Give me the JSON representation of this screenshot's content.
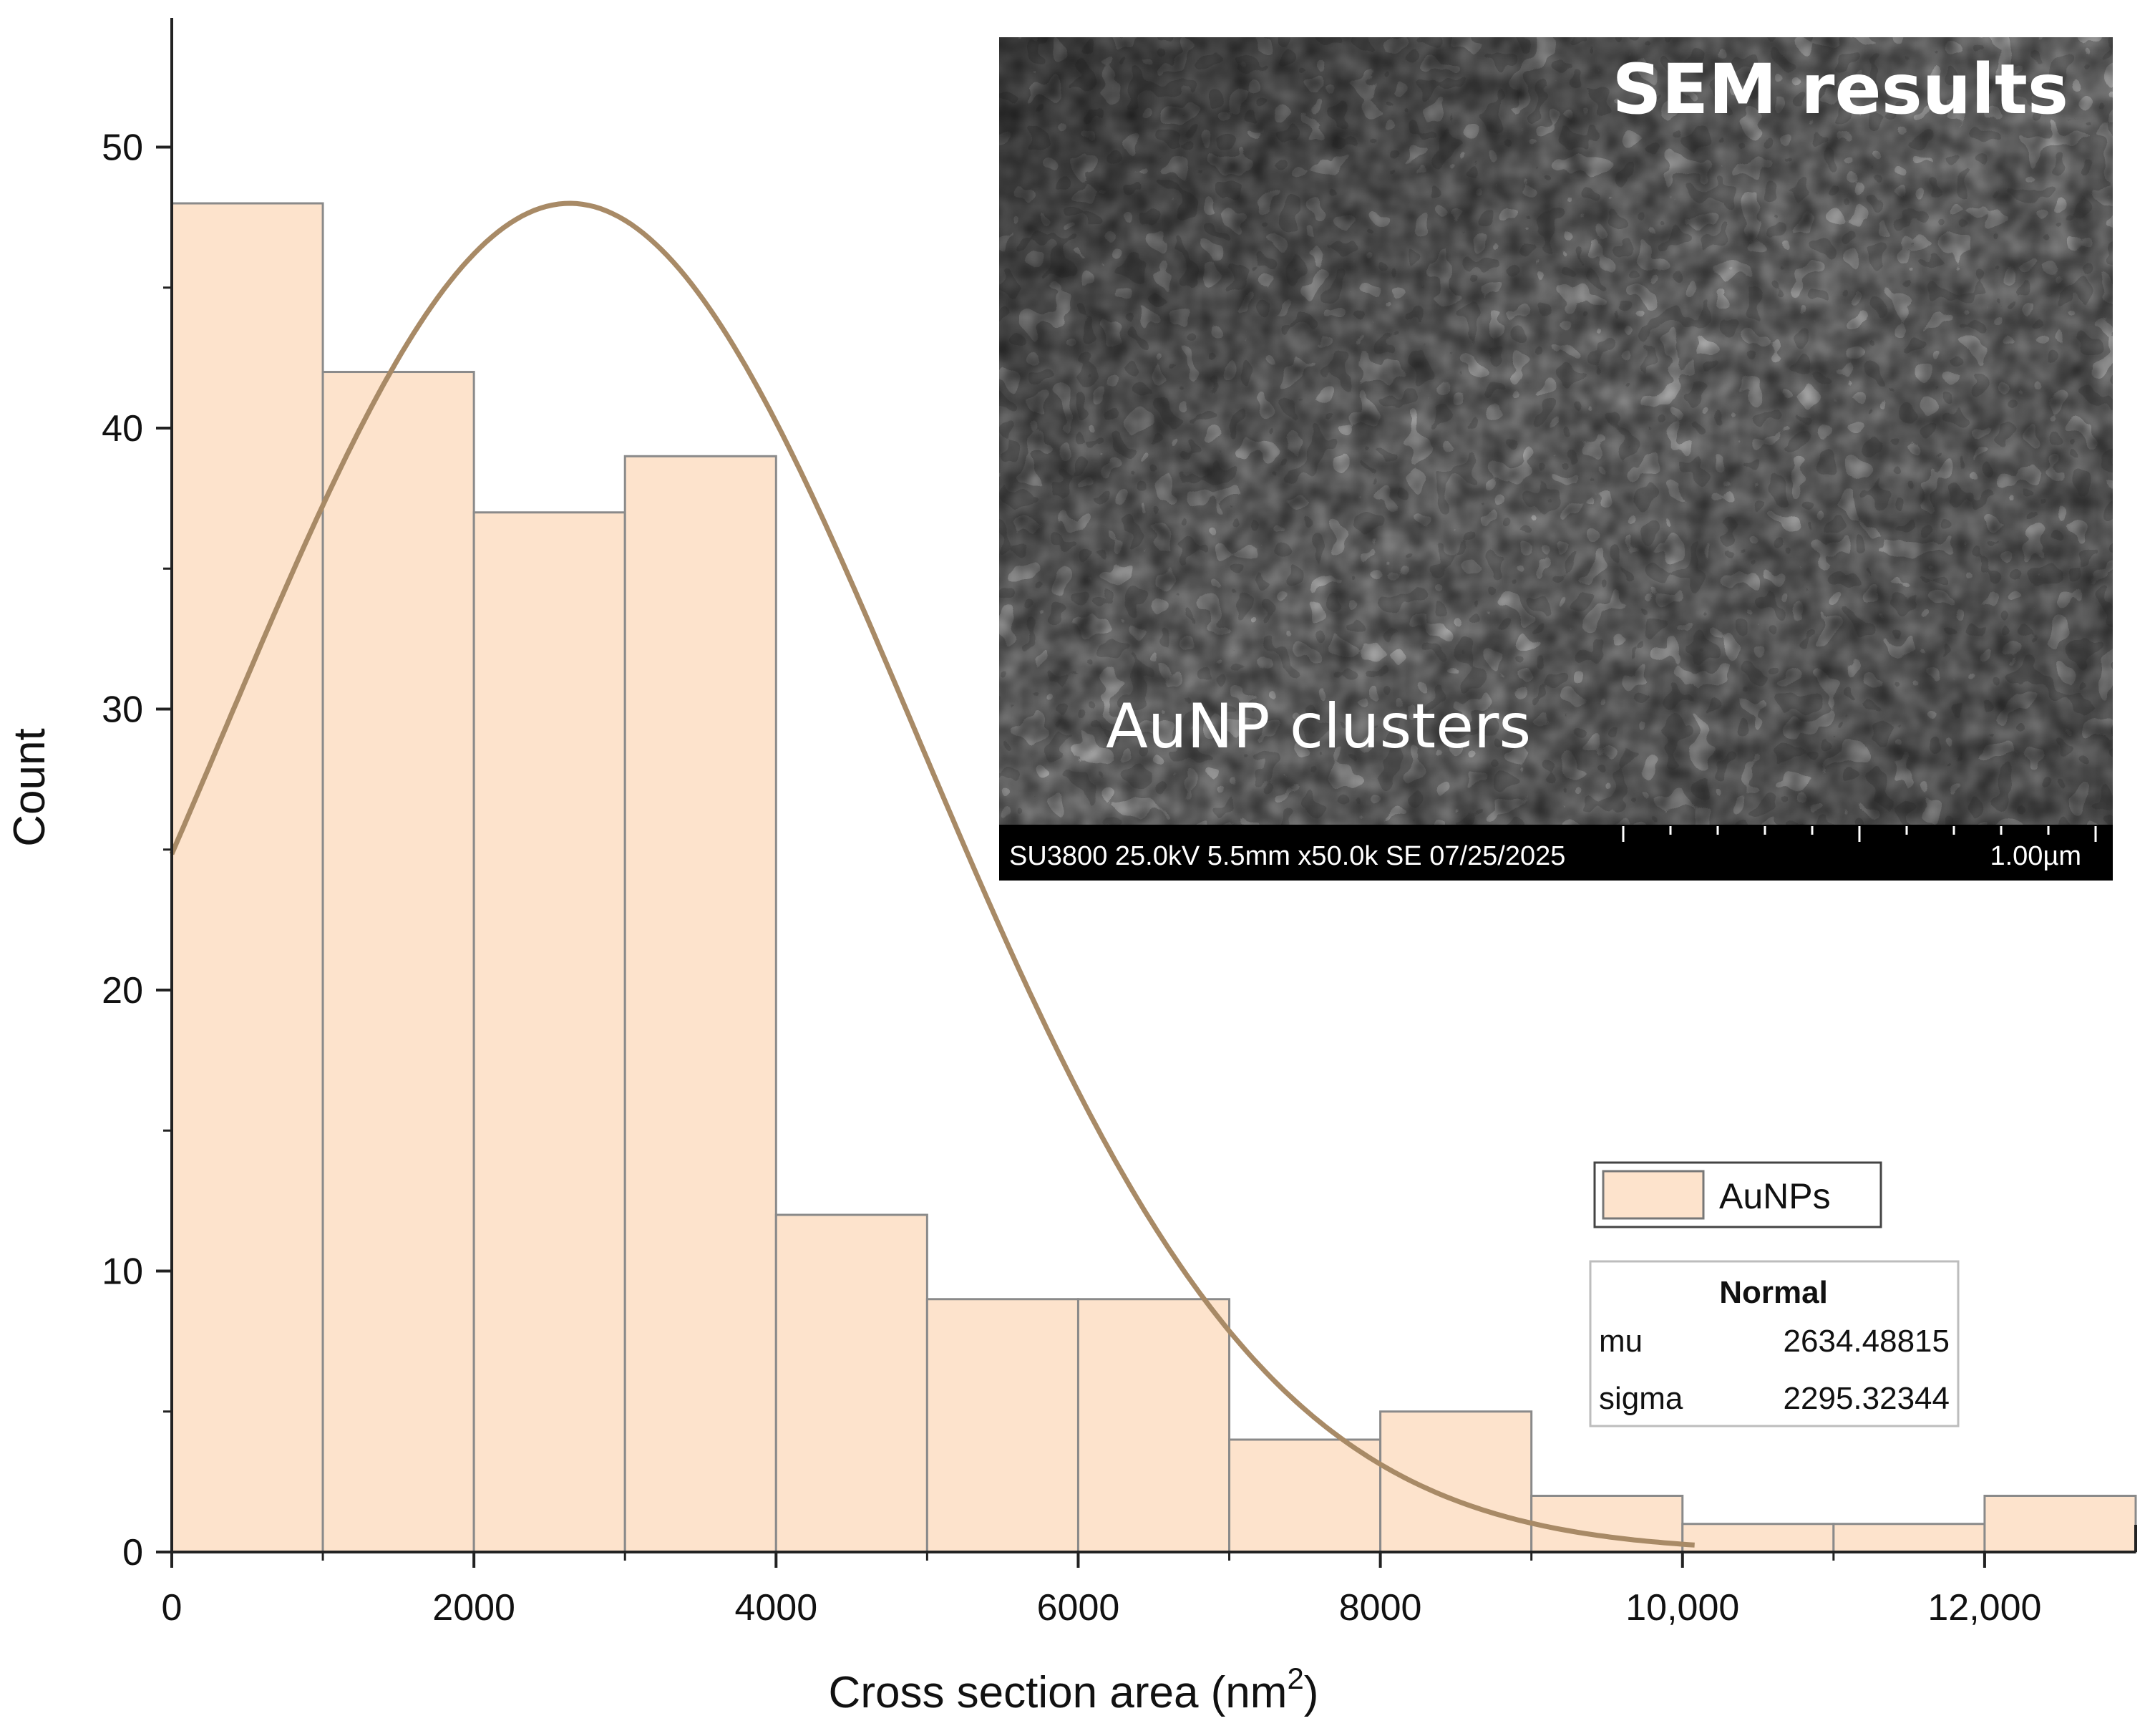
{
  "chart_data": {
    "type": "bar",
    "subtype": "histogram",
    "xlabel": "Cross section area (nm",
    "xlabel_sup": "2",
    "xlabel_end": ")",
    "ylabel": "Count",
    "xlim": [
      0,
      13000
    ],
    "ylim": [
      0,
      55
    ],
    "x_ticks": [
      {
        "value": 0,
        "label": "0"
      },
      {
        "value": 2000,
        "label": "2000"
      },
      {
        "value": 4000,
        "label": "4000"
      },
      {
        "value": 6000,
        "label": "6000"
      },
      {
        "value": 8000,
        "label": "8000"
      },
      {
        "value": 10000,
        "label": "10,000"
      },
      {
        "value": 12000,
        "label": "12,000"
      }
    ],
    "y_ticks": [
      {
        "value": 0,
        "label": "0"
      },
      {
        "value": 10,
        "label": "10"
      },
      {
        "value": 20,
        "label": "20"
      },
      {
        "value": 30,
        "label": "30"
      },
      {
        "value": 40,
        "label": "40"
      },
      {
        "value": 50,
        "label": "50"
      }
    ],
    "bin_width": 1000,
    "bins": [
      {
        "start": 0,
        "end": 1000,
        "count": 48
      },
      {
        "start": 1000,
        "end": 2000,
        "count": 42
      },
      {
        "start": 2000,
        "end": 3000,
        "count": 37
      },
      {
        "start": 3000,
        "end": 4000,
        "count": 39
      },
      {
        "start": 4000,
        "end": 5000,
        "count": 12
      },
      {
        "start": 5000,
        "end": 6000,
        "count": 9
      },
      {
        "start": 6000,
        "end": 7000,
        "count": 9
      },
      {
        "start": 7000,
        "end": 8000,
        "count": 4
      },
      {
        "start": 8000,
        "end": 9000,
        "count": 5
      },
      {
        "start": 9000,
        "end": 10000,
        "count": 2
      },
      {
        "start": 10000,
        "end": 11000,
        "count": 1
      },
      {
        "start": 11000,
        "end": 12000,
        "count": 1
      },
      {
        "start": 12000,
        "end": 13000,
        "count": 2
      }
    ],
    "series": [
      {
        "name": "AuNPs",
        "bar_color": "#fde3cc",
        "edge_color": "#8a8a8a"
      }
    ],
    "fit": {
      "type": "Normal",
      "title": "Normal",
      "mu_label": "mu",
      "mu": "2634.48815",
      "sigma_label": "sigma",
      "sigma": "2295.32344",
      "peak_count": 48,
      "x_range": [
        0,
        10100
      ],
      "color": "#a88a66"
    },
    "legend": {
      "entry": "AuNPs",
      "placement": "right"
    },
    "inset": {
      "title": "SEM results",
      "label": "AuNP clusters",
      "caption": "SU3800 25.0kV 5.5mm x50.0k SE 07/25/2025",
      "scale": "1.00µm"
    }
  }
}
